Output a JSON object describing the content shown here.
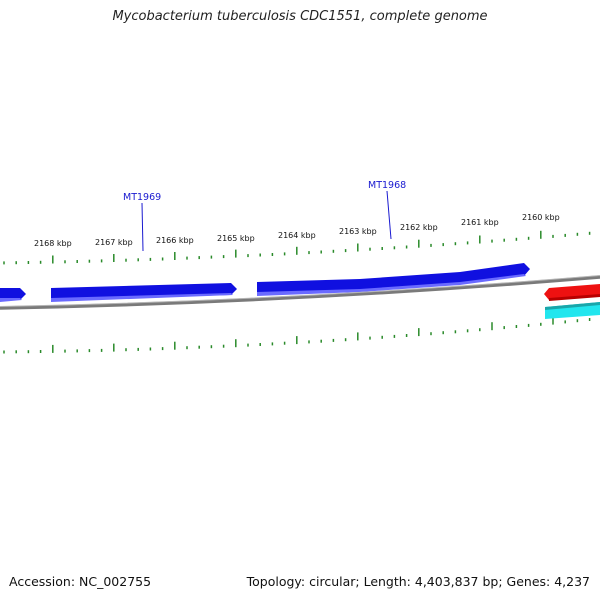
{
  "title": "Mycobacterium tuberculosis CDC1551, complete genome",
  "footer": {
    "accession": "Accession: NC_002755",
    "summary": "Topology: circular; Length: 4,403,837 bp; Genes: 4,237"
  },
  "ruler": {
    "labels": [
      "2168 kbp",
      "2167 kbp",
      "2166 kbp",
      "2165 kbp",
      "2164 kbp",
      "2163 kbp",
      "2162 kbp",
      "2161 kbp",
      "2160 kbp"
    ],
    "color": "#2a8a2a"
  },
  "gene_labels": [
    "MT1969",
    "MT1968"
  ],
  "colors": {
    "forward_gene": "#1010e0",
    "reverse_gene_red": "#ee1111",
    "reverse_gene_cyan": "#22e6ee",
    "backbone": "#808080",
    "label": "#1a1ad0"
  }
}
